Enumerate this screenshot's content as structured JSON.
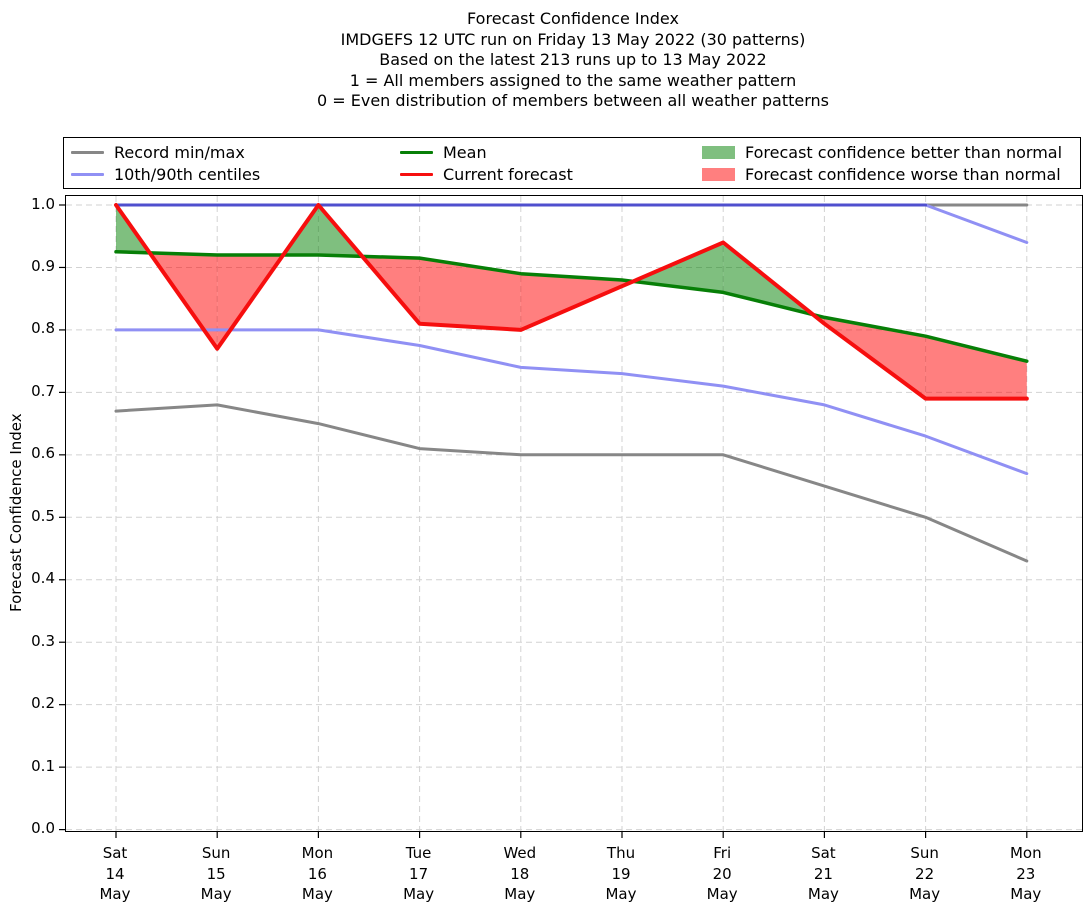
{
  "title": {
    "line1": "Forecast Confidence Index",
    "line2": "IMDGEFS 12 UTC run on Friday 13 May 2022 (30 patterns)",
    "line3": "Based on the latest 213 runs up to 13 May 2022",
    "line4": "1 = All members assigned to the same weather pattern",
    "line5": "0 = Even distribution of members between all weather patterns"
  },
  "legend": {
    "items": [
      {
        "label": "Record min/max",
        "type": "line",
        "color": "#878787"
      },
      {
        "label": "10th/90th centiles",
        "type": "line",
        "color": "#9090f4"
      },
      {
        "label": "Mean",
        "type": "line",
        "color": "#077f07"
      },
      {
        "label": "Current forecast",
        "type": "line",
        "color": "#f60e0e"
      },
      {
        "label": "Forecast confidence better than normal",
        "type": "patch",
        "color": "#7fbf7f"
      },
      {
        "label": "Forecast confidence worse than normal",
        "type": "patch",
        "color": "#ff7f7f"
      }
    ]
  },
  "axes": {
    "ylabel": "Forecast Confidence Index",
    "yticks": [
      "0.0",
      "0.1",
      "0.2",
      "0.3",
      "0.4",
      "0.5",
      "0.6",
      "0.7",
      "0.8",
      "0.9",
      "1.0"
    ],
    "ylim": [
      0.0,
      1.0
    ],
    "grid": "dashed both axes",
    "xtick_labels": [
      [
        "Sat",
        "14",
        "May"
      ],
      [
        "Sun",
        "15",
        "May"
      ],
      [
        "Mon",
        "16",
        "May"
      ],
      [
        "Tue",
        "17",
        "May"
      ],
      [
        "Wed",
        "18",
        "May"
      ],
      [
        "Thu",
        "19",
        "May"
      ],
      [
        "Fri",
        "20",
        "May"
      ],
      [
        "Sat",
        "21",
        "May"
      ],
      [
        "Sun",
        "22",
        "May"
      ],
      [
        "Mon",
        "23",
        "May"
      ]
    ]
  },
  "colors": {
    "record": "#878787",
    "centiles": "#9090f4",
    "centiles_over_record": "#4f4fce",
    "mean": "#077f07",
    "forecast": "#f60e0e",
    "fill_better": "#008000",
    "fill_worse": "#ff0000",
    "fill_opacity": 0.5,
    "grid": "#d2d2d2"
  },
  "chart_data": {
    "type": "line",
    "title": "Forecast Confidence Index",
    "xlabel": "",
    "ylabel": "Forecast Confidence Index",
    "ylim": [
      0.0,
      1.0
    ],
    "legend_position": "top",
    "x_dates": [
      "Sat 14 May",
      "Sun 15 May",
      "Mon 16 May",
      "Tue 17 May",
      "Wed 18 May",
      "Thu 19 May",
      "Fri 20 May",
      "Sat 21 May",
      "Sun 22 May",
      "Mon 23 May"
    ],
    "series": [
      {
        "name": "Record max",
        "values": [
          1.0,
          1.0,
          1.0,
          1.0,
          1.0,
          1.0,
          1.0,
          1.0,
          1.0,
          1.0
        ]
      },
      {
        "name": "Record min",
        "values": [
          0.67,
          0.68,
          0.65,
          0.61,
          0.6,
          0.6,
          0.6,
          0.55,
          0.5,
          0.43
        ]
      },
      {
        "name": "90th centile",
        "values": [
          1.0,
          1.0,
          1.0,
          1.0,
          1.0,
          1.0,
          1.0,
          1.0,
          1.0,
          0.94
        ]
      },
      {
        "name": "10th centile",
        "values": [
          0.8,
          0.8,
          0.8,
          0.775,
          0.74,
          0.73,
          0.71,
          0.68,
          0.63,
          0.57
        ]
      },
      {
        "name": "Mean",
        "values": [
          0.925,
          0.92,
          0.92,
          0.915,
          0.89,
          0.88,
          0.86,
          0.82,
          0.79,
          0.75
        ]
      },
      {
        "name": "Current forecast",
        "values": [
          1.0,
          0.77,
          1.0,
          0.81,
          0.8,
          0.87,
          0.94,
          0.81,
          0.69,
          0.69
        ]
      }
    ],
    "fills": [
      {
        "name": "better than normal",
        "between": [
          "Current forecast",
          "Mean"
        ],
        "where": "forecast > mean",
        "color": "#008000"
      },
      {
        "name": "worse than normal",
        "between": [
          "Current forecast",
          "Mean"
        ],
        "where": "forecast < mean",
        "color": "#ff0000"
      }
    ]
  }
}
